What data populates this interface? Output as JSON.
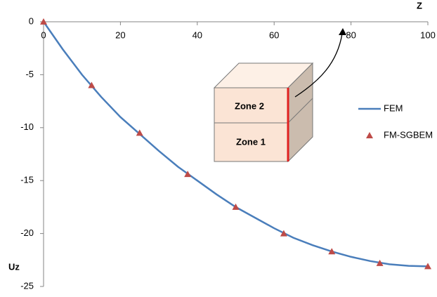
{
  "chart_data": {
    "type": "line",
    "xlabel": "Z",
    "ylabel": "Uz",
    "xlim": [
      0,
      100
    ],
    "xticks": [
      0,
      20,
      40,
      60,
      80,
      100
    ],
    "ylim": [
      -25,
      0
    ],
    "yticks": [
      0,
      -5,
      -10,
      -15,
      -20,
      -25
    ],
    "legend": "right",
    "annotations": [
      "Zone 2",
      "Zone 1"
    ],
    "series": [
      {
        "name": "FEM",
        "color": "#4a7ebb",
        "mode": "line",
        "x": [
          0,
          5,
          10,
          15,
          20,
          25,
          30,
          35,
          40,
          45,
          50,
          55,
          60,
          65,
          70,
          75,
          80,
          85,
          90,
          95,
          100
        ],
        "values": [
          0,
          -2.6,
          -5.0,
          -7.1,
          -9.0,
          -10.6,
          -12.2,
          -13.7,
          -15.0,
          -16.3,
          -17.5,
          -18.5,
          -19.5,
          -20.4,
          -21.1,
          -21.7,
          -22.2,
          -22.6,
          -22.9,
          -23.05,
          -23.1
        ]
      },
      {
        "name": "FM-SGBEM",
        "color": "#be4b48",
        "mode": "marker",
        "x": [
          0,
          12.5,
          25,
          37.5,
          50,
          62.5,
          75,
          87.5,
          100
        ],
        "values": [
          0,
          -6.0,
          -10.5,
          -14.4,
          -17.5,
          -20.0,
          -21.7,
          -22.8,
          -23.1
        ]
      }
    ]
  }
}
